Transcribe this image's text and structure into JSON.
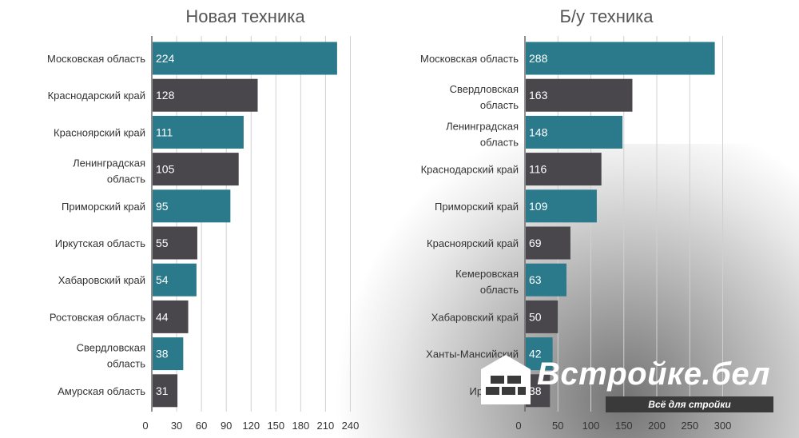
{
  "chart_data": [
    {
      "type": "bar",
      "orientation": "horizontal",
      "title": "Новая техника",
      "categories": [
        "Московская область",
        "Краснодарский край",
        "Красноярский край",
        "Ленинградская область",
        "Приморский край",
        "Иркутская область",
        "Хабаровский край",
        "Ростовская область",
        "Свердловская область",
        "Амурская область"
      ],
      "values": [
        224,
        128,
        111,
        105,
        95,
        55,
        54,
        44,
        38,
        31
      ],
      "bar_colors": [
        "#2a7a8c",
        "#4a474c",
        "#2a7a8c",
        "#4a474c",
        "#2a7a8c",
        "#4a474c",
        "#2a7a8c",
        "#4a474c",
        "#2a7a8c",
        "#4a474c"
      ],
      "xlim": [
        0,
        255
      ],
      "ticks": [
        0,
        30,
        60,
        90,
        120,
        150,
        180,
        210,
        240
      ],
      "grid": true
    },
    {
      "type": "bar",
      "orientation": "horizontal",
      "title": "Б/у техника",
      "categories": [
        "Московская область",
        "Свердловская область",
        "Ленинградская область",
        "Краснодарский край",
        "Приморский край",
        "Красноярский край",
        "Кемеровская область",
        "Хабаровский край",
        "Ханты-Мансийский",
        "Иркутская"
      ],
      "values": [
        288,
        163,
        148,
        116,
        109,
        69,
        63,
        50,
        42,
        38
      ],
      "bar_colors": [
        "#2a7a8c",
        "#4a474c",
        "#2a7a8c",
        "#4a474c",
        "#2a7a8c",
        "#4a474c",
        "#2a7a8c",
        "#4a474c",
        "#2a7a8c",
        "#4a474c"
      ],
      "xlim": [
        0,
        320
      ],
      "ticks": [
        0,
        50,
        100,
        150,
        200,
        250,
        300
      ],
      "grid": true
    }
  ],
  "colors": {
    "accent": "#2a7a8c",
    "dark": "#4a474c",
    "grid": "#d0d0d0",
    "label": "#333333"
  },
  "watermark": {
    "title": "Встройке.бел",
    "slogan": "Всё для стройки",
    "icon": "brick-house-icon"
  }
}
